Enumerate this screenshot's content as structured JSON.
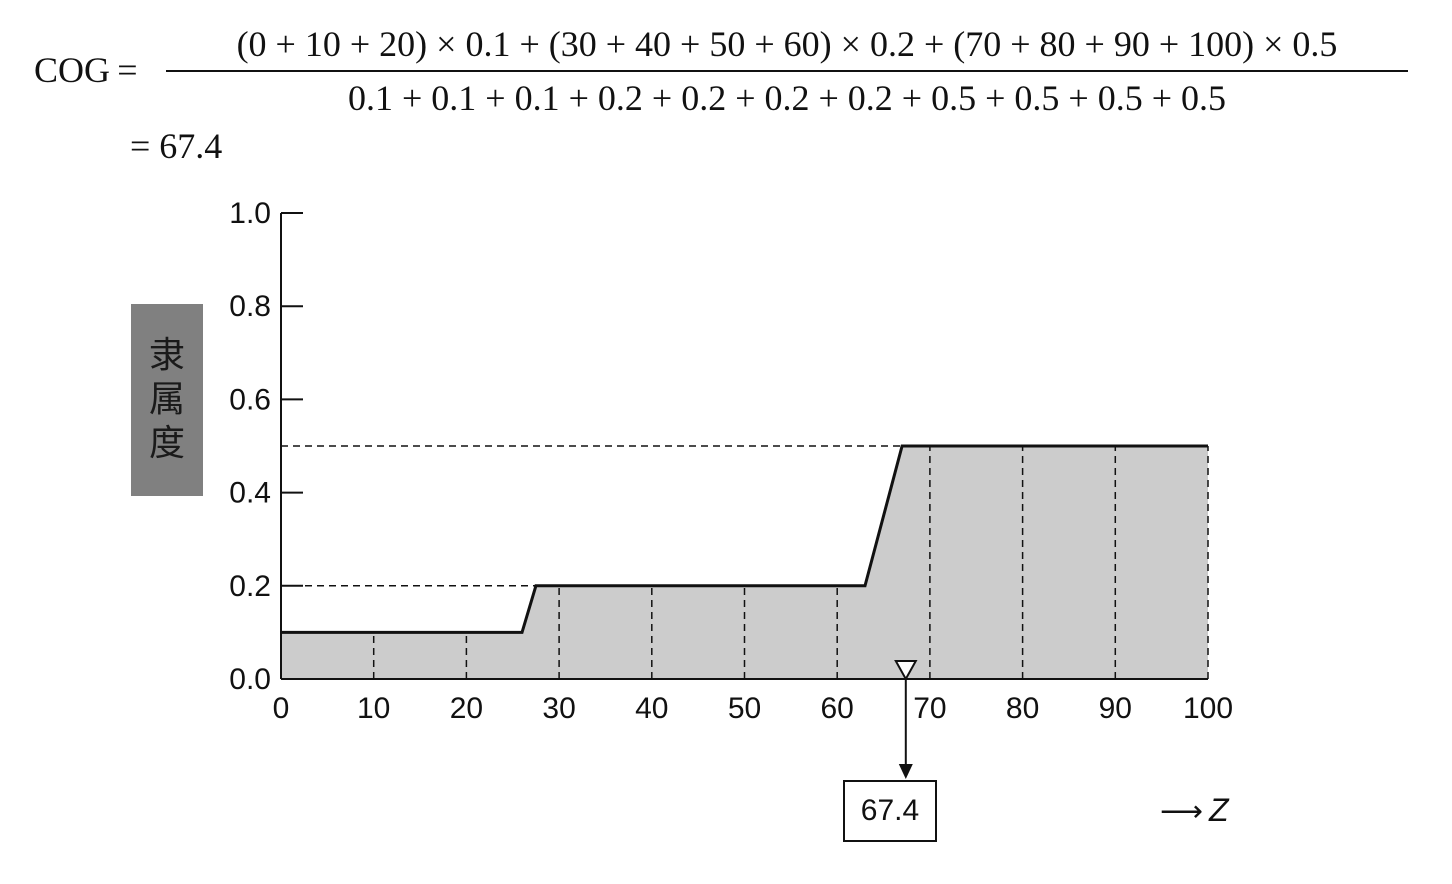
{
  "formula": {
    "lhs": "COG =",
    "numerator": "(0 + 10 + 20) × 0.1 + (30 + 40 + 50 + 60) × 0.2 + (70 + 80 + 90 + 100) × 0.5",
    "denominator": "0.1 + 0.1 + 0.1 + 0.2 + 0.2 + 0.2 + 0.2 + 0.5 + 0.5 + 0.5 + 0.5",
    "result": "= 67.4"
  },
  "chart_data": {
    "type": "area",
    "ylabel": "隶属度",
    "xlabel": "Z",
    "xlim": [
      0,
      100
    ],
    "ylim": [
      0,
      1.0
    ],
    "x_ticks": [
      "0",
      "10",
      "20",
      "30",
      "40",
      "50",
      "60",
      "70",
      "80",
      "90",
      "100"
    ],
    "y_ticks": [
      "0.0",
      "0.2",
      "0.4",
      "0.6",
      "0.8",
      "1.0"
    ],
    "membership_curve": {
      "x": [
        0,
        26,
        27.5,
        63,
        67,
        100
      ],
      "y": [
        0.1,
        0.1,
        0.2,
        0.2,
        0.5,
        0.5
      ]
    },
    "sample_points": {
      "x": [
        0,
        10,
        20,
        30,
        40,
        50,
        60,
        70,
        80,
        90,
        100
      ],
      "y": [
        0.1,
        0.1,
        0.1,
        0.2,
        0.2,
        0.2,
        0.2,
        0.5,
        0.5,
        0.5,
        0.5
      ]
    },
    "reference_levels": [
      0.2,
      0.5
    ],
    "cog_value": 67.4,
    "cog_label": "67.4",
    "fill_color": "#cccccc",
    "ylabel_box_color": "#808080"
  }
}
